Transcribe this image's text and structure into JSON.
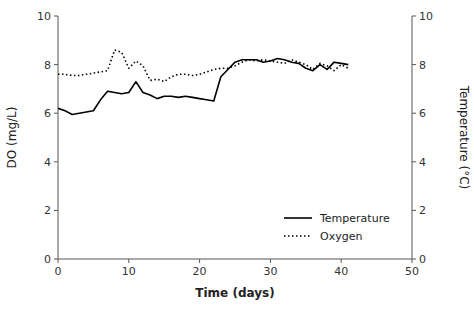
{
  "chart_data": {
    "type": "line",
    "xlabel": "Time (days)",
    "ylabel": "DO (mg/L)",
    "y2label": "Temperature (°C)",
    "x": [
      0,
      1,
      2,
      3,
      4,
      5,
      6,
      7,
      8,
      9,
      10,
      11,
      12,
      13,
      14,
      15,
      16,
      17,
      18,
      19,
      20,
      21,
      22,
      23,
      24,
      25,
      26,
      27,
      28,
      29,
      30,
      31,
      32,
      33,
      34,
      35,
      36,
      37,
      38,
      39,
      40,
      41
    ],
    "series": [
      {
        "name": "Temperature",
        "color": "#000000",
        "line_style": "solid",
        "values": [
          6.2,
          6.1,
          5.95,
          6.0,
          6.05,
          6.1,
          6.55,
          6.9,
          6.85,
          6.8,
          6.85,
          7.3,
          6.85,
          6.75,
          6.6,
          6.7,
          6.7,
          6.65,
          6.7,
          6.65,
          6.6,
          6.55,
          6.5,
          7.5,
          7.8,
          8.1,
          8.2,
          8.2,
          8.2,
          8.1,
          8.15,
          8.25,
          8.2,
          8.1,
          8.05,
          7.85,
          7.75,
          8.0,
          7.8,
          8.1,
          8.05,
          8.0
        ]
      },
      {
        "name": "Oxygen",
        "color": "#000000",
        "line_style": "dotted",
        "values": [
          7.6,
          7.6,
          7.55,
          7.55,
          7.6,
          7.65,
          7.7,
          7.75,
          8.6,
          8.5,
          7.85,
          8.15,
          7.95,
          7.35,
          7.4,
          7.3,
          7.5,
          7.6,
          7.6,
          7.55,
          7.6,
          7.7,
          7.8,
          7.85,
          7.85,
          7.95,
          8.1,
          8.2,
          8.15,
          8.2,
          8.15,
          8.1,
          8.05,
          8.2,
          8.1,
          8.0,
          7.8,
          8.05,
          7.95,
          7.75,
          8.0,
          7.85
        ]
      }
    ],
    "xlim": [
      0,
      50
    ],
    "xticks": [
      0,
      10,
      20,
      30,
      40,
      50
    ],
    "ylim": [
      0,
      10
    ],
    "yticks": [
      0,
      2,
      4,
      6,
      8,
      10
    ],
    "y2lim": [
      0,
      10
    ],
    "y2ticks": [
      0,
      2,
      4,
      6,
      8,
      10
    ],
    "grid": false,
    "legend": "lower right"
  }
}
